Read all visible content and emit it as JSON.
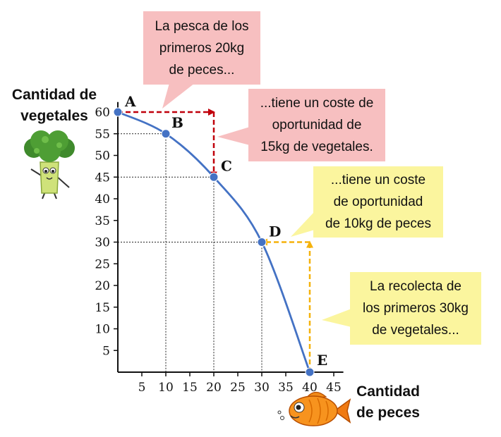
{
  "chart_data": {
    "type": "line",
    "title": "",
    "ylabel": [
      "Cantidad de",
      "vegetales"
    ],
    "xlabel": [
      "Cantidad",
      "de peces"
    ],
    "xlim": [
      0,
      47
    ],
    "ylim": [
      0,
      62
    ],
    "x_ticks": [
      5,
      10,
      15,
      20,
      25,
      30,
      35,
      40,
      45
    ],
    "y_ticks": [
      5,
      10,
      15,
      20,
      25,
      30,
      35,
      40,
      45,
      50,
      55,
      60
    ],
    "points": [
      {
        "label": "A",
        "x": 0,
        "y": 60
      },
      {
        "label": "B",
        "x": 10,
        "y": 55
      },
      {
        "label": "C",
        "x": 20,
        "y": 45
      },
      {
        "label": "D",
        "x": 30,
        "y": 30
      },
      {
        "label": "E",
        "x": 40,
        "y": 0
      }
    ],
    "line_color": "#4472c4",
    "annotations": [
      {
        "lines": [
          "La pesca de los",
          "primeros 20kg",
          "de peces..."
        ],
        "color": "#f7bfc0"
      },
      {
        "lines": [
          "...tiene un coste de",
          "oportunidad de",
          "15kg de vegetales."
        ],
        "color": "#f7bfc0"
      },
      {
        "lines": [
          "...tiene un coste",
          "de oportunidad",
          "de 10kg de peces"
        ],
        "color": "#fbf59e"
      },
      {
        "lines": [
          "La recolecta de",
          "los primeros 30kg",
          "de vegetales..."
        ],
        "color": "#fbf59e"
      }
    ],
    "arrows": [
      {
        "color": "#c0000b",
        "from": [
          0,
          60
        ],
        "to": [
          20,
          60
        ]
      },
      {
        "color": "#c0000b",
        "from": [
          20,
          60
        ],
        "to": [
          20,
          45
        ]
      },
      {
        "color": "#f5b20c",
        "from": [
          40,
          0
        ],
        "to": [
          40,
          30
        ]
      },
      {
        "color": "#f5b20c",
        "from": [
          40,
          30
        ],
        "to": [
          30,
          30
        ]
      }
    ]
  },
  "icons": {
    "broccoli": "broccoli-character-icon",
    "fish": "fish-character-icon"
  }
}
